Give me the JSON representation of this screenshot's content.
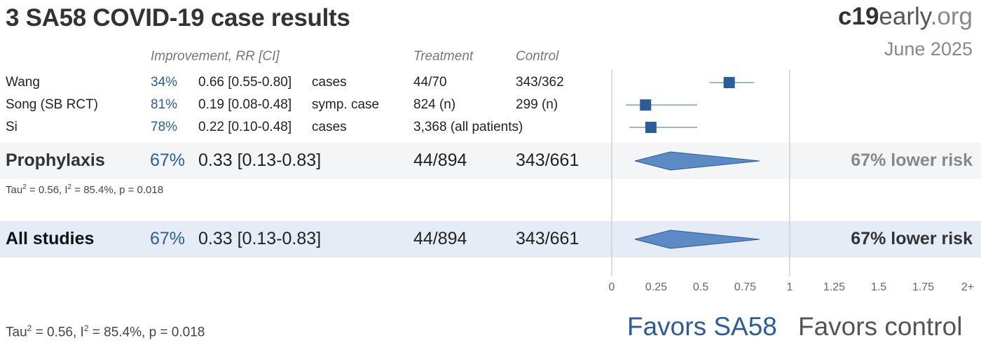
{
  "title": "3 SA58 COVID-19 case results",
  "brand": {
    "part1": "c19",
    "part2": "early",
    "part3": ".org"
  },
  "date": "June 2025",
  "headers": {
    "improvement": "Improvement, RR [CI]",
    "treatment": "Treatment",
    "control": "Control"
  },
  "studies": [
    {
      "name": "Wang",
      "improvement": "34%",
      "rr_ci": "0.66 [0.55-0.80]",
      "outcome": "cases",
      "treatment": "44/70",
      "control": "343/362"
    },
    {
      "name": "Song (SB RCT)",
      "improvement": "81%",
      "rr_ci": "0.19 [0.08-0.48]",
      "outcome": "symp. case",
      "treatment": "824 (n)",
      "control": "299 (n)"
    },
    {
      "name": "Si",
      "improvement": "78%",
      "rr_ci": "0.22 [0.10-0.48]",
      "outcome": "cases",
      "treatment": "3,368 (all patients)",
      "control": ""
    }
  ],
  "prophylaxis": {
    "label": "Prophylaxis",
    "improvement": "67%",
    "rr_ci": "0.33 [0.13-0.83]",
    "treatment": "44/894",
    "control": "343/661",
    "risk_text": "67% lower risk",
    "stats": {
      "tau_prefix": "Tau",
      "tau_value": " = 0.56, I",
      "i_value": " = 85.4%, p = 0.018",
      "sup": "2"
    }
  },
  "all_studies": {
    "label": "All studies",
    "improvement": "67%",
    "rr_ci": "0.33 [0.13-0.83]",
    "treatment": "44/894",
    "control": "343/661",
    "risk_text": "67% lower risk",
    "stats": {
      "tau_prefix": "Tau",
      "tau_value": " = 0.56, I",
      "i_value": " = 85.4%, p = 0.018",
      "sup": "2"
    }
  },
  "favors": {
    "left": "Favors SA58",
    "right": "Favors control"
  },
  "colors": {
    "accent": "#2a5d9a",
    "diamond": "#5b8ac4",
    "band_prophylaxis": "#f4f5f7",
    "band_all": "#e6ecf6"
  },
  "chart_data": {
    "type": "forest",
    "x_ticks": [
      "0",
      "0.25",
      "0.5",
      "0.75",
      "1",
      "1.25",
      "1.5",
      "1.75",
      "2+"
    ],
    "xlim": [
      0,
      2
    ],
    "studies": [
      {
        "name": "Wang",
        "rr": 0.66,
        "lo": 0.55,
        "hi": 0.8
      },
      {
        "name": "Song (SB RCT)",
        "rr": 0.19,
        "lo": 0.08,
        "hi": 0.48
      },
      {
        "name": "Si",
        "rr": 0.22,
        "lo": 0.1,
        "hi": 0.48
      }
    ],
    "pooled": [
      {
        "name": "Prophylaxis",
        "rr": 0.33,
        "lo": 0.13,
        "hi": 0.83
      },
      {
        "name": "All studies",
        "rr": 0.33,
        "lo": 0.13,
        "hi": 0.83
      }
    ]
  }
}
